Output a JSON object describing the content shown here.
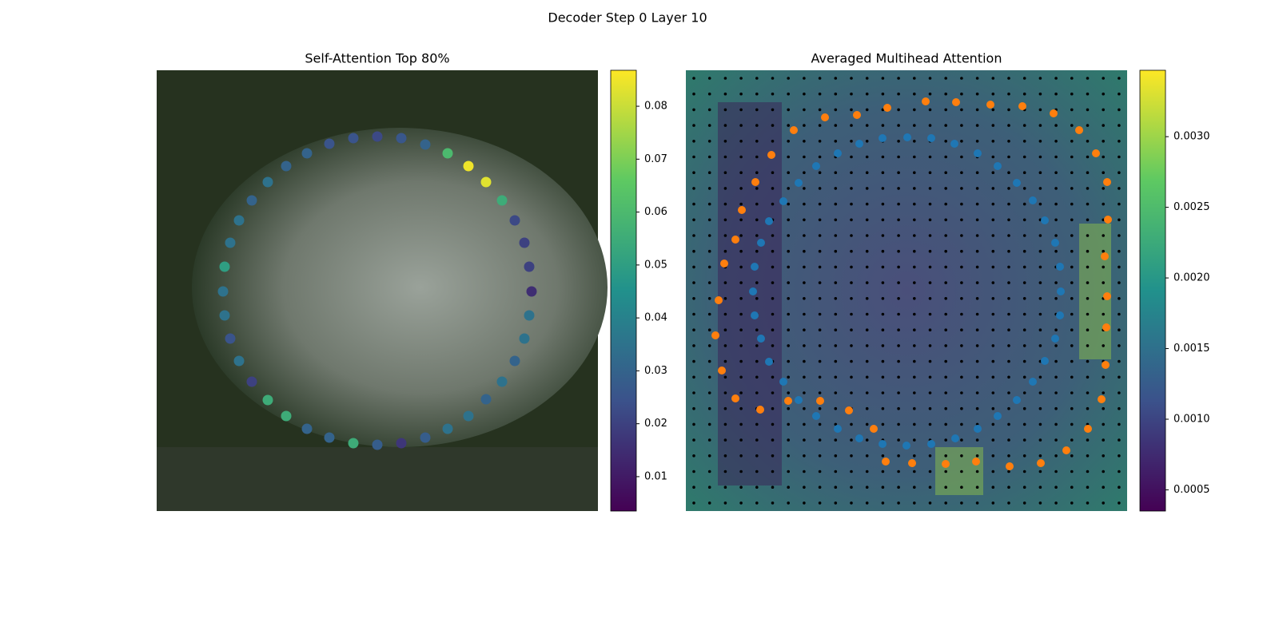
{
  "title": "Decoder Step 0 Layer 10",
  "chart_data": [
    {
      "type": "scatter",
      "title": "Self-Attention Top 80%",
      "cmap": "viridis",
      "xlim": [
        0,
        552
      ],
      "ylim": [
        552,
        0
      ],
      "x": [
        276,
        306,
        336,
        364,
        390,
        412,
        432,
        448,
        460,
        466,
        469,
        466,
        460,
        448,
        432,
        412,
        390,
        364,
        336,
        306,
        276,
        246,
        216,
        188,
        162,
        139,
        119,
        103,
        92,
        85,
        83,
        85,
        92,
        103,
        119,
        139,
        162,
        188,
        216,
        246
      ],
      "y": [
        83,
        85,
        93,
        104,
        120,
        140,
        163,
        188,
        216,
        246,
        277,
        307,
        336,
        364,
        390,
        412,
        433,
        449,
        460,
        467,
        469,
        467,
        460,
        449,
        433,
        413,
        390,
        364,
        336,
        307,
        277,
        246,
        216,
        188,
        163,
        140,
        120,
        104,
        92,
        85
      ],
      "values": [
        0.022,
        0.026,
        0.03,
        0.06,
        0.085,
        0.083,
        0.055,
        0.022,
        0.02,
        0.02,
        0.015,
        0.035,
        0.035,
        0.03,
        0.035,
        0.03,
        0.035,
        0.035,
        0.028,
        0.017,
        0.028,
        0.055,
        0.03,
        0.03,
        0.055,
        0.055,
        0.02,
        0.035,
        0.025,
        0.035,
        0.035,
        0.05,
        0.035,
        0.035,
        0.03,
        0.035,
        0.03,
        0.03,
        0.025,
        0.025
      ],
      "clim": [
        0.0035,
        0.0868
      ],
      "cticks": [
        0.01,
        0.02,
        0.03,
        0.04,
        0.05,
        0.06,
        0.07,
        0.08
      ]
    },
    {
      "type": "scatter",
      "title": "Averaged Multihead Attention",
      "cmap": "viridis",
      "xlim": [
        0,
        552
      ],
      "ylim": [
        552,
        0
      ],
      "series": [
        {
          "color": "#ff7f0e",
          "x": [
            300,
            338,
            381,
            421,
            460,
            492,
            513,
            527,
            528,
            524,
            527,
            526,
            525,
            520,
            503,
            476,
            444,
            405,
            363,
            325,
            283,
            250,
            235,
            204,
            168,
            128,
            93,
            62,
            45,
            37,
            41,
            48,
            62,
            70,
            87,
            107,
            135,
            174,
            214,
            252
          ],
          "y": [
            39,
            40,
            43,
            45,
            54,
            75,
            104,
            140,
            187,
            233,
            283,
            322,
            369,
            412,
            449,
            476,
            492,
            496,
            490,
            493,
            492,
            490,
            449,
            426,
            414,
            414,
            425,
            411,
            376,
            332,
            288,
            242,
            212,
            175,
            140,
            106,
            75,
            59,
            56,
            47
          ]
        },
        {
          "color": "#1f77b4",
          "x": [
            277,
            307,
            336,
            365,
            390,
            414,
            434,
            449,
            462,
            468,
            469,
            468,
            462,
            449,
            434,
            414,
            390,
            365,
            337,
            307,
            276,
            246,
            217,
            190,
            163,
            141,
            122,
            104,
            94,
            86,
            84,
            86,
            94,
            104,
            122,
            141,
            163,
            190,
            217,
            246
          ],
          "y": [
            84,
            85,
            92,
            104,
            120,
            141,
            163,
            188,
            216,
            246,
            277,
            307,
            336,
            364,
            390,
            413,
            433,
            449,
            461,
            468,
            470,
            468,
            461,
            449,
            433,
            413,
            390,
            365,
            336,
            307,
            277,
            246,
            216,
            189,
            164,
            141,
            120,
            104,
            92,
            85
          ]
        }
      ],
      "clim": [
        0.00035,
        0.00347
      ],
      "cticks": [
        {
          "value": 0.003,
          "label": "0.0030"
        },
        0.0025,
        {
          "value": 0.002,
          "label": "0.0020"
        },
        0.0015,
        {
          "value": 0.001,
          "label": "0.0010"
        },
        0.0005
      ]
    }
  ]
}
